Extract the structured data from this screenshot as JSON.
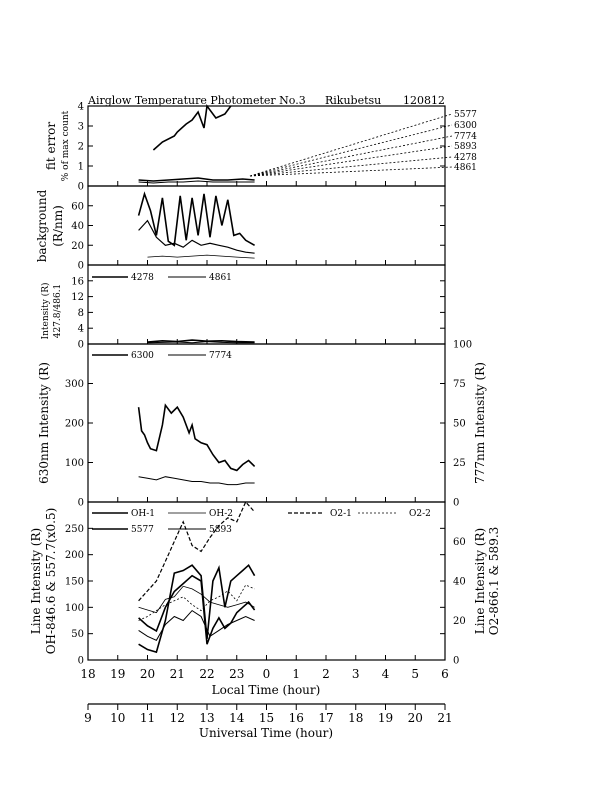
{
  "title": {
    "instrument": "Airglow Temperature Photometer No.3",
    "station": "Rikubetsu",
    "date": "120812"
  },
  "axes": {
    "local_time_label": "Local Time (hour)",
    "universal_time_label": "Universal Time (hour)",
    "local_ticks": [
      "18",
      "19",
      "20",
      "21",
      "22",
      "23",
      "0",
      "1",
      "2",
      "3",
      "4",
      "5",
      "6"
    ],
    "universal_ticks": [
      "9",
      "10",
      "11",
      "12",
      "13",
      "14",
      "15",
      "16",
      "17",
      "18",
      "19",
      "20",
      "21"
    ]
  },
  "chart_data": [
    {
      "type": "line",
      "panel": "fit-error",
      "ylabel": "fit error % of max count",
      "ylabel_line1": "fit error",
      "ylabel_line2": "% of max count",
      "ylim": [
        0,
        4
      ],
      "yticks": [
        "0",
        "1",
        "2",
        "3",
        "4"
      ],
      "legend": [
        "5577",
        "6300",
        "7774",
        "5893",
        "4278",
        "4861"
      ],
      "series": [
        {
          "name": "5577",
          "x": [
            20.2,
            20.5,
            20.9,
            21.0,
            21.3,
            21.5,
            21.7,
            21.9,
            22.0,
            22.3,
            22.6,
            22.8
          ],
          "y": [
            1.8,
            2.2,
            2.5,
            2.7,
            3.1,
            3.3,
            3.7,
            2.9,
            4.0,
            3.4,
            3.6,
            4.0
          ]
        },
        {
          "name": "6300",
          "x": [
            19.7,
            20.2,
            20.7,
            21.2,
            21.7,
            22.2,
            22.7,
            23.2,
            23.6
          ],
          "y": [
            0.3,
            0.25,
            0.3,
            0.35,
            0.4,
            0.3,
            0.3,
            0.35,
            0.3
          ]
        },
        {
          "name": "7774",
          "x": [
            19.7,
            20.2,
            20.7,
            21.2,
            21.7,
            22.2,
            22.7,
            23.2,
            23.6
          ],
          "y": [
            0.2,
            0.15,
            0.2,
            0.2,
            0.25,
            0.2,
            0.2,
            0.2,
            0.2
          ]
        }
      ]
    },
    {
      "type": "line",
      "panel": "background",
      "ylabel": "background (R/nm)",
      "ylabel_line1": "background",
      "ylabel_line2": "(R/nm)",
      "ylim": [
        0,
        80
      ],
      "yticks": [
        "0",
        "20",
        "40",
        "60"
      ],
      "series": [
        {
          "x": [
            19.7,
            19.9,
            20.1,
            20.3,
            20.5,
            20.7,
            20.9,
            21.1,
            21.3,
            21.5,
            21.7,
            21.9,
            22.1,
            22.3,
            22.5,
            22.7,
            22.9,
            23.1,
            23.3,
            23.6
          ],
          "y": [
            50,
            72,
            55,
            30,
            68,
            24,
            20,
            70,
            25,
            68,
            30,
            72,
            28,
            70,
            40,
            66,
            30,
            32,
            25,
            20
          ]
        },
        {
          "x": [
            19.7,
            20.0,
            20.3,
            20.6,
            20.9,
            21.2,
            21.5,
            21.8,
            22.1,
            22.4,
            22.7,
            23.0,
            23.3,
            23.6
          ],
          "y": [
            35,
            45,
            28,
            20,
            22,
            18,
            25,
            20,
            22,
            20,
            18,
            15,
            13,
            12
          ]
        },
        {
          "x": [
            20.0,
            20.5,
            21.0,
            21.5,
            22.0,
            22.5,
            23.0,
            23.6
          ],
          "y": [
            8,
            9,
            8,
            9,
            10,
            9,
            8,
            7
          ]
        }
      ]
    },
    {
      "type": "line",
      "panel": "blue-lines",
      "ylabel": "Intensity (R) 427.8/486.1",
      "ylabel_line1": "Intensity (R)",
      "ylabel_line2": "427.8/486.1",
      "ylim": [
        0,
        20
      ],
      "yticks": [
        "0",
        "4",
        "8",
        "12",
        "16"
      ],
      "legend": [
        "4278",
        "4861"
      ],
      "series": [
        {
          "name": "4278",
          "x": [
            20.0,
            20.5,
            21.0,
            21.5,
            22.0,
            22.5,
            23.0,
            23.6
          ],
          "y": [
            0.5,
            0.8,
            0.6,
            1.0,
            0.7,
            0.8,
            0.6,
            0.5
          ]
        },
        {
          "name": "4861",
          "x": [
            20.0,
            20.5,
            21.0,
            21.5,
            22.0,
            22.5,
            23.0,
            23.6
          ],
          "y": [
            0.3,
            0.4,
            0.5,
            0.3,
            0.6,
            0.4,
            0.3,
            0.3
          ]
        }
      ]
    },
    {
      "type": "line",
      "panel": "oi-red",
      "ylabel": "630nm Intensity (R)",
      "ylabel_right": "777nm Intensity (R)",
      "ylim": [
        0,
        400
      ],
      "ylim_right": [
        0,
        100
      ],
      "yticks": [
        "0",
        "100",
        "200",
        "300"
      ],
      "yticks_right": [
        "0",
        "25",
        "50",
        "75",
        "100"
      ],
      "legend": [
        "6300",
        "7774"
      ],
      "series": [
        {
          "name": "6300",
          "x": [
            19.7,
            19.8,
            19.9,
            20.0,
            20.1,
            20.3,
            20.5,
            20.6,
            20.8,
            21.0,
            21.2,
            21.4,
            21.5,
            21.6,
            21.8,
            22.0,
            22.2,
            22.4,
            22.6,
            22.8,
            23.0,
            23.2,
            23.4,
            23.6
          ],
          "y": [
            240,
            180,
            170,
            150,
            135,
            130,
            195,
            245,
            225,
            240,
            215,
            175,
            195,
            160,
            150,
            145,
            120,
            100,
            105,
            85,
            80,
            95,
            105,
            90
          ]
        },
        {
          "name": "7774",
          "x": [
            19.7,
            20.0,
            20.3,
            20.6,
            20.9,
            21.2,
            21.5,
            21.8,
            22.1,
            22.4,
            22.7,
            23.0,
            23.3,
            23.6
          ],
          "y": [
            16,
            15,
            14,
            16,
            15,
            14,
            13,
            13,
            12,
            12,
            11,
            11,
            12,
            12
          ]
        }
      ]
    },
    {
      "type": "line",
      "panel": "line-intensity",
      "ylabel": "Line Intensity (R) OH-846.6 & 557.7(x0.5)",
      "ylabel_line1": "Line Intensity (R)",
      "ylabel_line2": "OH-846.6 & 557.7(x0.5)",
      "ylabel_right": "Line Intensity (R) O2-866.1 & 589.3",
      "ylabel_right_line1": "Line Intensity (R)",
      "ylabel_right_line2": "O2-866.1 & 589.3",
      "ylim": [
        0,
        300
      ],
      "ylim_right": [
        0,
        80
      ],
      "yticks": [
        "0",
        "50",
        "100",
        "150",
        "200",
        "250"
      ],
      "yticks_right": [
        "0",
        "20",
        "40",
        "60"
      ],
      "legend": [
        "OH-1",
        "OH-2",
        "5577",
        "5893",
        "O2-1",
        "O2-2"
      ],
      "series": [
        {
          "name": "OH-1",
          "x": [
            19.7,
            20.0,
            20.3,
            20.6,
            20.9,
            21.2,
            21.5,
            21.8,
            22.0,
            22.2,
            22.4,
            22.6,
            22.8,
            23.0,
            23.2,
            23.4,
            23.6
          ],
          "y": [
            80,
            65,
            55,
            100,
            130,
            145,
            160,
            150,
            30,
            60,
            80,
            60,
            70,
            90,
            100,
            110,
            95
          ]
        },
        {
          "name": "OH-2",
          "x": [
            19.7,
            20.0,
            20.3,
            20.6,
            20.9,
            21.2,
            21.5,
            21.8,
            22.1,
            22.4,
            22.7,
            23.0,
            23.3,
            23.6
          ],
          "y": [
            100,
            95,
            90,
            115,
            120,
            140,
            135,
            125,
            110,
            105,
            100,
            105,
            110,
            100
          ]
        },
        {
          "name": "5577",
          "x": [
            19.7,
            20.0,
            20.3,
            20.6,
            20.9,
            21.2,
            21.5,
            21.8,
            22.0,
            22.2,
            22.4,
            22.6,
            22.8,
            23.0,
            23.2,
            23.4,
            23.6
          ],
          "y": [
            30,
            20,
            15,
            75,
            165,
            170,
            180,
            160,
            40,
            150,
            175,
            100,
            150,
            160,
            170,
            180,
            160
          ]
        },
        {
          "name": "5893",
          "x": [
            19.7,
            20.0,
            20.3,
            20.6,
            20.9,
            21.2,
            21.5,
            21.8,
            22.1,
            22.4,
            22.7,
            23.0,
            23.3,
            23.6
          ],
          "y": [
            15,
            12,
            10,
            18,
            22,
            20,
            25,
            22,
            12,
            15,
            18,
            20,
            22,
            20
          ]
        },
        {
          "name": "O2-1",
          "x": [
            19.7,
            20.0,
            20.3,
            20.6,
            20.9,
            21.2,
            21.5,
            21.8,
            22.1,
            22.4,
            22.7,
            23.0,
            23.3,
            23.6
          ],
          "y": [
            30,
            35,
            40,
            50,
            60,
            70,
            58,
            55,
            62,
            68,
            72,
            70,
            80,
            75
          ]
        },
        {
          "name": "O2-2",
          "x": [
            19.7,
            20.0,
            20.3,
            20.6,
            20.9,
            21.2,
            21.5,
            21.8,
            22.1,
            22.4,
            22.7,
            23.0,
            23.3,
            23.6
          ],
          "y": [
            20,
            22,
            25,
            28,
            30,
            32,
            28,
            25,
            30,
            32,
            35,
            30,
            38,
            36
          ]
        }
      ]
    }
  ]
}
